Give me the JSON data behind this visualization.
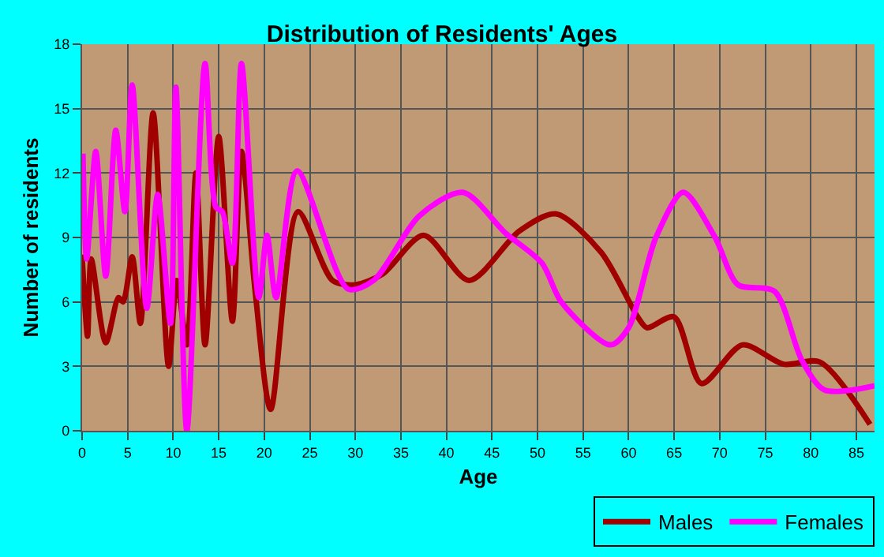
{
  "chart_data": {
    "type": "line",
    "title": "Distribution of Residents' Ages",
    "xlabel": "Age",
    "ylabel": "Number of residents",
    "xlim": [
      0,
      87
    ],
    "xticks": [
      0,
      5,
      10,
      15,
      20,
      25,
      30,
      35,
      40,
      45,
      50,
      55,
      60,
      65,
      70,
      75,
      80,
      85
    ],
    "ylim": [
      0,
      18
    ],
    "yticks": [
      0,
      3,
      6,
      9,
      12,
      15,
      18
    ],
    "grid": true,
    "legend": "bottom right",
    "marker": "none",
    "line_style": "solid",
    "series": [
      {
        "name": "Males",
        "color": "#a00000",
        "x": [
          0,
          0.6,
          1,
          2.6,
          4,
          4.5,
          5.5,
          6.4,
          7.8,
          9.5,
          10.4,
          11.5,
          12.5,
          13.5,
          15,
          16.5,
          17.5,
          19,
          20.7,
          23.7,
          27.5,
          30,
          33,
          37.5,
          42.5,
          48,
          52,
          57,
          61,
          62,
          65,
          68,
          72.5,
          77,
          81,
          86.5
        ],
        "values": [
          8.2,
          4.4,
          8,
          4.1,
          6.2,
          6,
          8.1,
          5,
          14.8,
          3,
          7,
          4,
          12,
          4,
          13.7,
          5.1,
          13,
          6.5,
          1,
          10.2,
          7,
          6.8,
          7.3,
          9.1,
          7,
          9.3,
          10.1,
          8.3,
          5.3,
          4.8,
          5.3,
          2.2,
          4,
          3.1,
          3.2,
          0.3
        ]
      },
      {
        "name": "Females",
        "color": "#ff00ff",
        "x": [
          0.1,
          0.5,
          1.5,
          2.6,
          3.7,
          4.7,
          5.5,
          7.1,
          8.3,
          9.7,
          10.3,
          11.5,
          13.5,
          14.7,
          15.4,
          16.5,
          17.5,
          19.4,
          20.3,
          21.3,
          23.6,
          29.2,
          32,
          37,
          41.8,
          46.5,
          50.5,
          52.6,
          58,
          60,
          63,
          66,
          69.5,
          72,
          76,
          79,
          81.5,
          87
        ],
        "values": [
          12.9,
          8,
          13,
          7.2,
          14,
          10.2,
          16.1,
          5.7,
          11,
          5,
          16,
          0,
          17.1,
          10.4,
          10.2,
          7.8,
          17.1,
          6.2,
          9.1,
          6.2,
          12.1,
          6.6,
          7,
          10,
          11.1,
          9.2,
          7.8,
          6,
          4,
          4.8,
          9,
          11.1,
          9,
          6.8,
          6.5,
          3.3,
          1.9,
          2.1
        ]
      }
    ]
  }
}
